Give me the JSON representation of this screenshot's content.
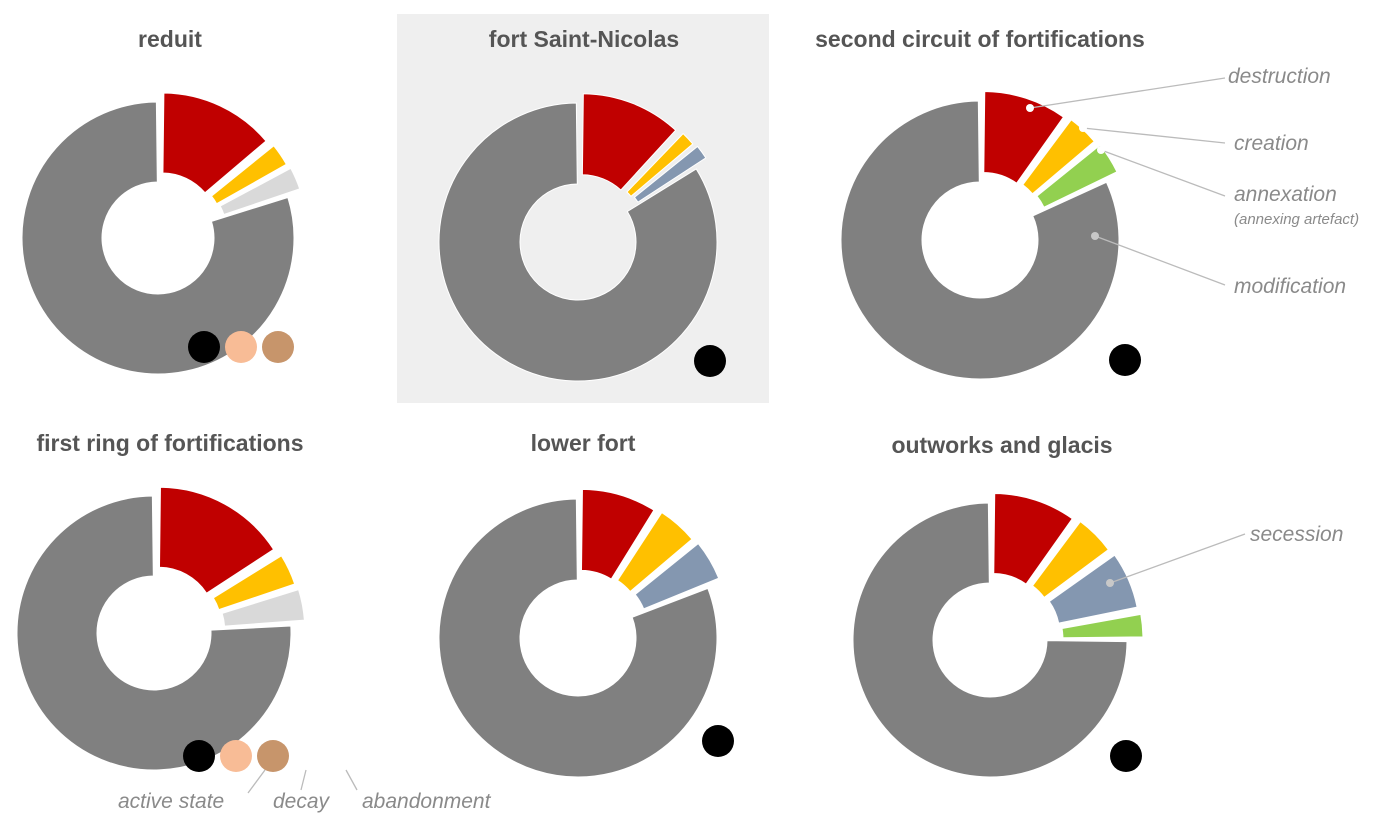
{
  "colors": {
    "destruction": "#c00000",
    "creation": "#ffc000",
    "annexation": "#92d050",
    "modification": "#808080",
    "secession": "#8497b0",
    "light_gray": "#d9d9d9",
    "active_state": "#000000",
    "decay": "#f8bc96",
    "abandonment": "#c7956b",
    "highlight_bg": "#efefef"
  },
  "chart_data": [
    {
      "type": "pie",
      "variant": "exploded-donut",
      "title": "reduit",
      "segments": [
        {
          "category": "destruction",
          "value": 14
        },
        {
          "category": "creation",
          "value": 3
        },
        {
          "category": "light_gray",
          "value": 3
        },
        {
          "category": "modification",
          "value": 80
        }
      ],
      "state_markers": [
        "active_state",
        "decay",
        "abandonment"
      ]
    },
    {
      "type": "pie",
      "variant": "exploded-donut",
      "title": "fort Saint-Nicolas",
      "highlighted": true,
      "segments": [
        {
          "category": "destruction",
          "value": 12
        },
        {
          "category": "creation",
          "value": 2
        },
        {
          "category": "secession",
          "value": 2
        },
        {
          "category": "modification",
          "value": 84
        }
      ],
      "state_markers": [
        "active_state"
      ]
    },
    {
      "type": "pie",
      "variant": "exploded-donut",
      "title": "second circuit of fortifications",
      "segments": [
        {
          "category": "destruction",
          "value": 10
        },
        {
          "category": "creation",
          "value": 4
        },
        {
          "category": "annexation",
          "value": 4
        },
        {
          "category": "modification",
          "value": 82
        }
      ],
      "state_markers": [
        "active_state"
      ]
    },
    {
      "type": "pie",
      "variant": "exploded-donut",
      "title": "first ring of fortifications",
      "segments": [
        {
          "category": "destruction",
          "value": 16
        },
        {
          "category": "creation",
          "value": 4
        },
        {
          "category": "light_gray",
          "value": 4
        },
        {
          "category": "modification",
          "value": 76
        }
      ],
      "state_markers": [
        "active_state",
        "decay",
        "abandonment"
      ]
    },
    {
      "type": "pie",
      "variant": "exploded-donut",
      "title": "lower fort",
      "segments": [
        {
          "category": "destruction",
          "value": 9
        },
        {
          "category": "creation",
          "value": 5
        },
        {
          "category": "secession",
          "value": 5
        },
        {
          "category": "modification",
          "value": 81
        }
      ],
      "state_markers": [
        "active_state"
      ]
    },
    {
      "type": "pie",
      "variant": "exploded-donut",
      "title": "outworks and glacis",
      "segments": [
        {
          "category": "destruction",
          "value": 10
        },
        {
          "category": "creation",
          "value": 5
        },
        {
          "category": "secession",
          "value": 7
        },
        {
          "category": "annexation",
          "value": 3
        },
        {
          "category": "modification",
          "value": 75
        }
      ],
      "state_markers": [
        "active_state"
      ]
    }
  ],
  "legend": {
    "destruction": "destruction",
    "creation": "creation",
    "annexation": "annexation",
    "annexation_note": "(annexing artefact)",
    "modification": "modification",
    "secession": "secession",
    "active_state": "active state",
    "decay": "decay",
    "abandonment": "abandonment"
  }
}
